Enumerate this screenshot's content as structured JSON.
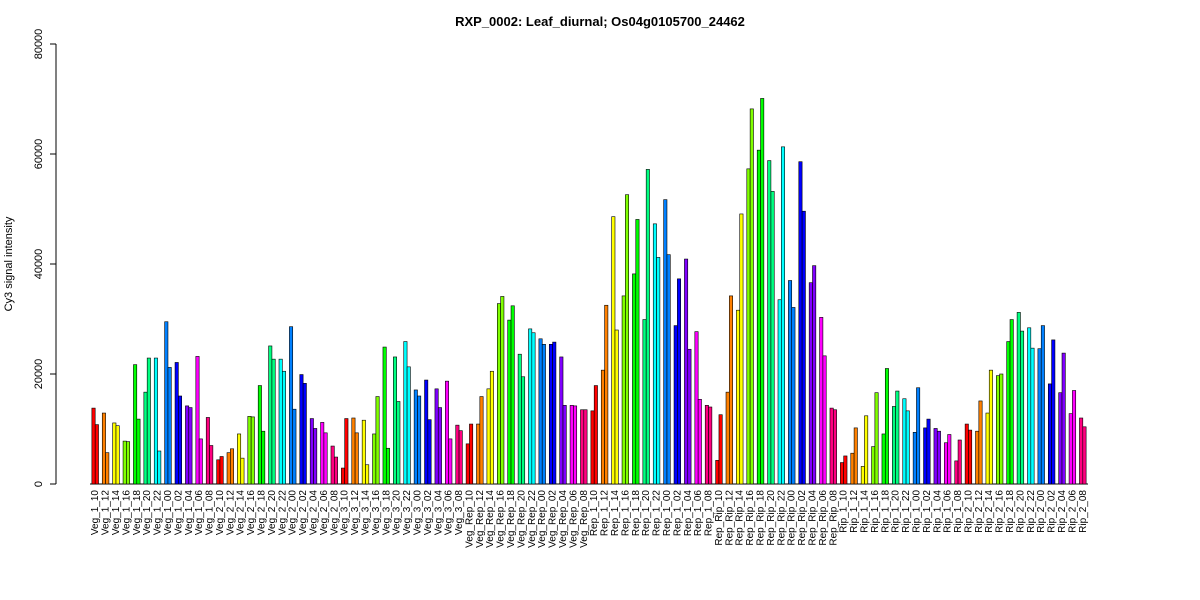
{
  "chart_data": {
    "type": "bar",
    "title": "RXP_0002: Leaf_diurnal; Os04g0105700_24462",
    "xlabel": "",
    "ylabel": "Cy3 signal intensity",
    "ylim": [
      0,
      80000
    ],
    "yticks": [
      0,
      20000,
      40000,
      60000,
      80000
    ],
    "grid": false,
    "legend": "none",
    "categories": [
      "Veg_1_10",
      "Veg_1_12",
      "Veg_1_14",
      "Veg_1_16",
      "Veg_1_18",
      "Veg_1_20",
      "Veg_1_22",
      "Veg_1_00",
      "Veg_1_02",
      "Veg_1_04",
      "Veg_1_06",
      "Veg_1_08",
      "Veg_2_10",
      "Veg_2_12",
      "Veg_2_14",
      "Veg_2_16",
      "Veg_2_18",
      "Veg_2_20",
      "Veg_2_22",
      "Veg_2_00",
      "Veg_2_02",
      "Veg_2_04",
      "Veg_2_06",
      "Veg_2_08",
      "Veg_3_10",
      "Veg_3_12",
      "Veg_3_14",
      "Veg_3_16",
      "Veg_3_18",
      "Veg_3_20",
      "Veg_3_22",
      "Veg_3_00",
      "Veg_3_02",
      "Veg_3_04",
      "Veg_3_06",
      "Veg_3_08",
      "Veg_Rep_10",
      "Veg_Rep_12",
      "Veg_Rep_14",
      "Veg_Rep_16",
      "Veg_Rep_18",
      "Veg_Rep_20",
      "Veg_Rep_22",
      "Veg_Rep_00",
      "Veg_Rep_02",
      "Veg_Rep_04",
      "Veg_Rep_06",
      "Veg_Rep_08",
      "Rep_1_10",
      "Rep_1_12",
      "Rep_1_14",
      "Rep_1_16",
      "Rep_1_18",
      "Rep_1_20",
      "Rep_1_22",
      "Rep_1_00",
      "Rep_1_02",
      "Rep_1_04",
      "Rep_1_06",
      "Rep_1_08",
      "Rep_Rip_10",
      "Rep_Rip_12",
      "Rep_Rip_14",
      "Rep_Rip_16",
      "Rep_Rip_18",
      "Rep_Rip_20",
      "Rep_Rip_22",
      "Rep_Rip_00",
      "Rep_Rip_02",
      "Rep_Rip_04",
      "Rep_Rip_06",
      "Rep_Rip_08",
      "Rip_1_10",
      "Rip_1_12",
      "Rip_1_14",
      "Rip_1_16",
      "Rip_1_18",
      "Rip_1_20",
      "Rip_1_22",
      "Rip_1_00",
      "Rip_1_02",
      "Rip_1_04",
      "Rip_1_06",
      "Rip_1_08",
      "Rip_2_10",
      "Rip_2_12",
      "Rip_2_14",
      "Rip_2_16",
      "Rip_2_18",
      "Rip_2_20",
      "Rip_2_22",
      "Rip_2_00",
      "Rip_2_02",
      "Rip_2_04",
      "Rip_2_06",
      "Rip_2_08"
    ],
    "series": [
      {
        "values": [
          13800,
          12900,
          11100,
          7800,
          21700,
          16700,
          22900,
          29500,
          22100,
          14200,
          23200,
          12100,
          4400,
          5700,
          9100,
          12300,
          17900,
          25100,
          22700,
          28600,
          19900,
          11900,
          11200,
          6900,
          2900,
          12000,
          11600,
          9100,
          24900,
          23100,
          25900,
          17100,
          18900,
          17300,
          18700,
          10700,
          7300,
          10900,
          17300,
          32800,
          29800,
          23600,
          28200,
          26400,
          25400,
          23100,
          14300,
          13500,
          13300,
          20700,
          48600,
          34200,
          38200,
          29900,
          47300,
          51700,
          28800,
          40900,
          27700,
          14300,
          4300,
          16700,
          31600,
          57300,
          60700,
          58800,
          33500,
          37000,
          58600,
          36600,
          30300,
          13800,
          3900,
          5600,
          3200,
          6800,
          9100,
          14100,
          15500,
          9400,
          10200,
          10100,
          7500,
          4200,
          10900,
          9600,
          12900,
          19700,
          25900,
          31200,
          28400,
          24600,
          18200,
          16600,
          12800,
          12000
        ]
      },
      {
        "values": [
          10800,
          5700,
          10600,
          7700,
          11800,
          22900,
          6000,
          21200,
          16000,
          13900,
          8200,
          7000,
          5000,
          6400,
          4700,
          12200,
          9600,
          22700,
          20500,
          13600,
          18300,
          10100,
          9300,
          4900,
          11900,
          9300,
          3500,
          15900,
          6500,
          15000,
          21300,
          16000,
          11700,
          13900,
          8200,
          9700,
          10900,
          15900,
          20500,
          34100,
          32400,
          19500,
          27500,
          25400,
          25800,
          14300,
          14200,
          13500,
          17900,
          32500,
          28000,
          52600,
          48100,
          57200,
          41200,
          41700,
          37300,
          24500,
          15400,
          14000,
          12600,
          34200,
          49100,
          68200,
          70100,
          53200,
          61300,
          32100,
          49600,
          39700,
          23300,
          13500,
          5100,
          10200,
          12400,
          16600,
          21000,
          16900,
          13300,
          17500,
          11800,
          9600,
          9000,
          8000,
          9800,
          15100,
          20700,
          20000,
          29900,
          27800,
          24700,
          28800,
          26200,
          23800,
          17000,
          10400
        ]
      }
    ]
  },
  "palette": [
    "#ff0000",
    "#ff8000",
    "#ffff00",
    "#80ff00",
    "#00ff00",
    "#00ff80",
    "#00ffff",
    "#0080ff",
    "#0000ff",
    "#8000ff",
    "#ff00ff",
    "#ff0080"
  ]
}
